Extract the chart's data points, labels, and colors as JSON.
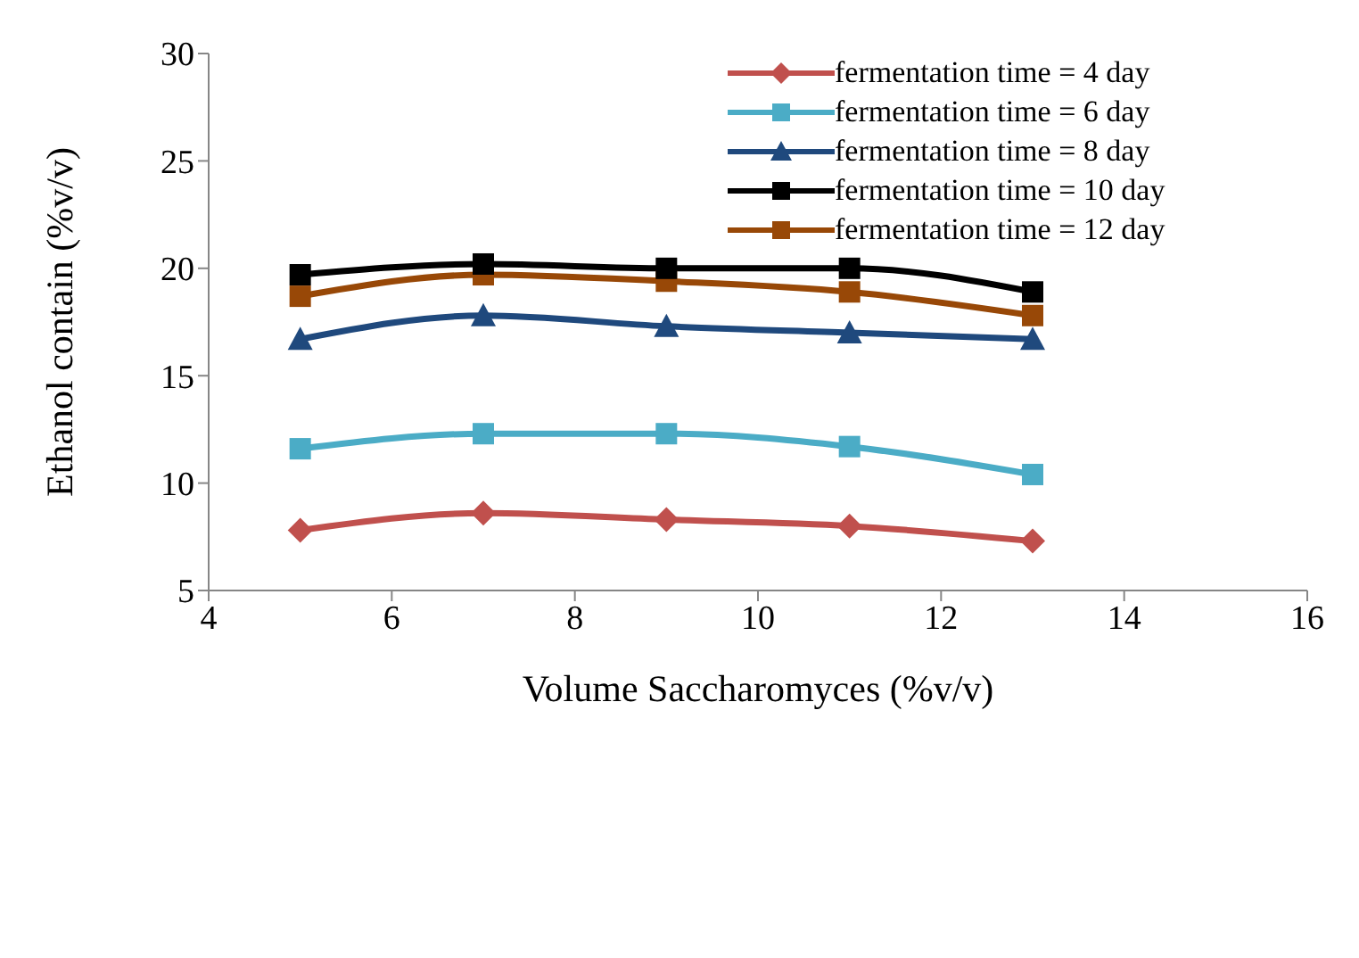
{
  "chart_data": {
    "type": "line",
    "xlabel": "Volume Saccharomyces (%v/v)",
    "ylabel": "Ethanol contain (%v/v)",
    "x": [
      5,
      7,
      9,
      11,
      13
    ],
    "series": [
      {
        "name": "fermentation time = 4 day",
        "color": "#c0504d",
        "marker": "diamond",
        "values": [
          7.8,
          8.6,
          8.3,
          8.0,
          7.3
        ]
      },
      {
        "name": "fermentation time = 6 day",
        "color": "#4bacc6",
        "marker": "square",
        "values": [
          11.6,
          12.3,
          12.3,
          11.7,
          10.4
        ]
      },
      {
        "name": "fermentation time = 8 day",
        "color": "#1f497d",
        "marker": "triangle",
        "values": [
          16.7,
          17.8,
          17.3,
          17.0,
          16.7
        ]
      },
      {
        "name": "fermentation time = 10 day",
        "color": "#000000",
        "marker": "square",
        "values": [
          19.7,
          20.2,
          20.0,
          20.0,
          18.9
        ]
      },
      {
        "name": "fermentation time = 12 day",
        "color": "#984807",
        "marker": "square",
        "values": [
          18.7,
          19.7,
          19.4,
          18.9,
          17.8
        ]
      }
    ],
    "xlim": [
      4,
      16
    ],
    "xticks": [
      4,
      6,
      8,
      10,
      12,
      14,
      16
    ],
    "ylim": [
      5,
      30
    ],
    "yticks": [
      5,
      10,
      15,
      20,
      25,
      30
    ],
    "grid": false,
    "legend": "top right",
    "line_style": "solid"
  }
}
